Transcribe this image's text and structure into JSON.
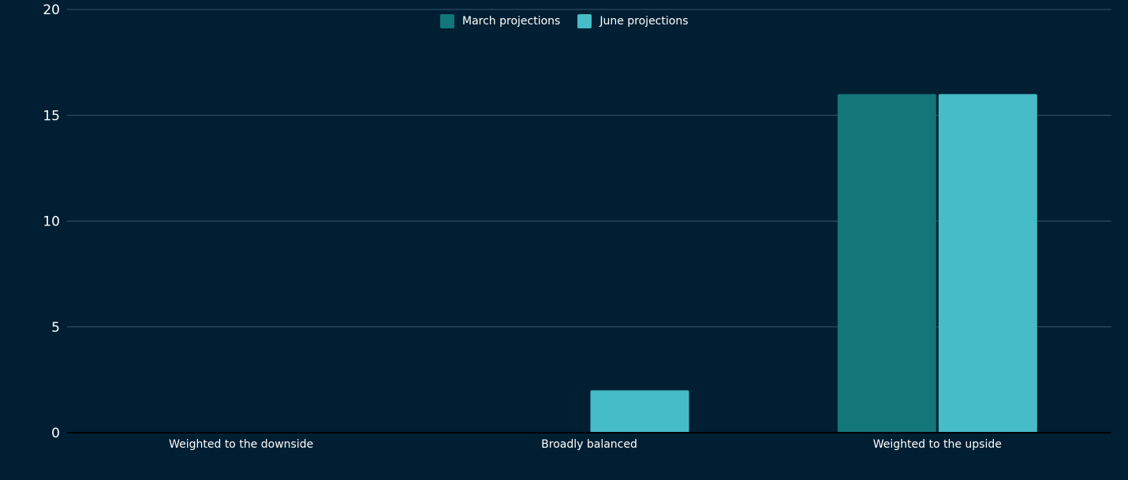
{
  "chart_data": {
    "type": "bar",
    "categories": [
      "Weighted to the downside",
      "Broadly balanced",
      "Weighted to the upside"
    ],
    "series": [
      {
        "name": "March projections",
        "values": [
          0,
          0,
          16
        ],
        "color": "#137679"
      },
      {
        "name": "June projections",
        "values": [
          0,
          2,
          16
        ],
        "color": "#45bcc6"
      }
    ],
    "ylim": [
      0,
      20
    ],
    "yticks": [
      0,
      5,
      10,
      15,
      20
    ],
    "grid": true,
    "legend_position": "top-center",
    "xlabel": "",
    "ylabel": ""
  }
}
